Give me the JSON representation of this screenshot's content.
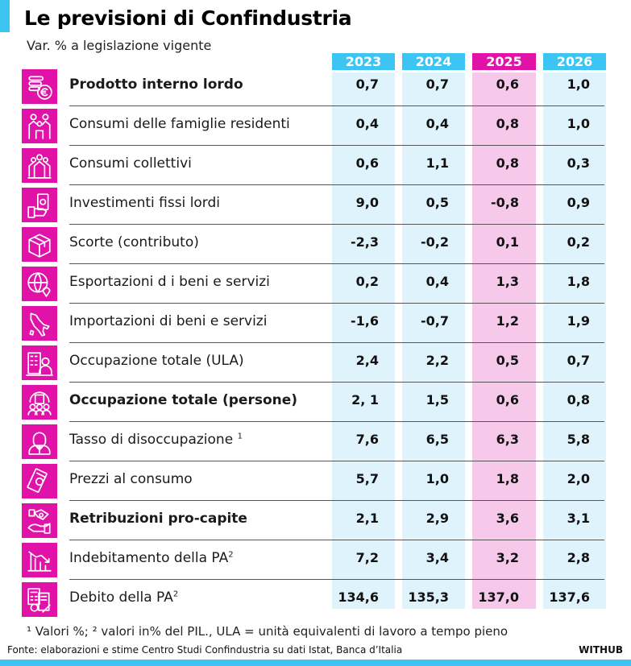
{
  "header": {
    "title": "Le previsioni di Confindustria",
    "subtitle": "Var. % a legislazione vigente"
  },
  "colors": {
    "accent_blue": "#3cc5f2",
    "accent_pink": "#e012a8",
    "column_blue": "#dff3fc",
    "column_pink": "#f6c9ea"
  },
  "columns": [
    "2023",
    "2024",
    "2025",
    "2026"
  ],
  "highlight_column": "2025",
  "rows": [
    {
      "icon": "coins-euro-icon",
      "label": "Prodotto interno lordo",
      "bold": true,
      "values": [
        "0,7",
        "0,7",
        "0,6",
        "1,0"
      ]
    },
    {
      "icon": "family-icon",
      "label": "Consumi delle famiglie residenti",
      "bold": false,
      "values": [
        "0,4",
        "0,4",
        "0,8",
        "1,0"
      ]
    },
    {
      "icon": "group-people-icon",
      "label": "Consumi collettivi",
      "bold": false,
      "values": [
        "0,6",
        "1,1",
        "0,8",
        "0,3"
      ]
    },
    {
      "icon": "hand-money-icon",
      "label": "Investimenti fissi lordi",
      "bold": false,
      "values": [
        "9,0",
        "0,5",
        "-0,8",
        "0,9"
      ]
    },
    {
      "icon": "box-icon",
      "label": "Scorte (contributo)",
      "bold": false,
      "values": [
        "-2,3",
        "-0,2",
        "0,1",
        "0,2"
      ]
    },
    {
      "icon": "globe-pin-icon",
      "label": "Esportazioni d i beni e servizi",
      "bold": false,
      "values": [
        "0,2",
        "0,4",
        "1,3",
        "1,8"
      ]
    },
    {
      "icon": "italy-map-icon",
      "label": "Importazioni di beni e servizi",
      "bold": false,
      "values": [
        "-1,6",
        "-0,7",
        "1,2",
        "1,9"
      ]
    },
    {
      "icon": "office-worker-icon",
      "label": "Occupazione totale (ULA)",
      "bold": false,
      "values": [
        "2,4",
        "2,2",
        "0,5",
        "0,7"
      ]
    },
    {
      "icon": "workforce-icon",
      "label": "Occupazione totale (persone)",
      "bold": true,
      "values": [
        "2, 1",
        "1,5",
        "0,6",
        "0,8"
      ]
    },
    {
      "icon": "businessman-icon",
      "label": "Tasso di disoccupazione",
      "sup": "1",
      "bold": false,
      "values": [
        "7,6",
        "6,5",
        "6,3",
        "5,8"
      ]
    },
    {
      "icon": "banknotes-icon",
      "label": "Prezzi al consumo",
      "bold": false,
      "values": [
        "5,7",
        "1,0",
        "1,8",
        "2,0"
      ]
    },
    {
      "icon": "hand-salary-icon",
      "label": "Retribuzioni pro-capite",
      "bold": true,
      "values": [
        "2,1",
        "2,9",
        "3,6",
        "3,1"
      ]
    },
    {
      "icon": "declining-chart-icon",
      "label": "Indebitamento della PA",
      "sup": "2",
      "bold": false,
      "values": [
        "7,2",
        "3,4",
        "3,2",
        "2,8"
      ]
    },
    {
      "icon": "calculator-document-icon",
      "label": "Debito della PA",
      "sup": "2",
      "bold": false,
      "values": [
        "134,6",
        "135,3",
        "137,0",
        "137,6"
      ]
    }
  ],
  "footer": {
    "footnote": "¹ Valori %; ² valori in% del PIL., ULA = unità equivalenti di lavoro a tempo pieno",
    "source": "Fonte: elaborazioni e stime Centro Studi Confindustria su dati Istat, Banca d’Italia",
    "brand": "WITHUB"
  },
  "chart_data": {
    "type": "table",
    "title": "Le previsioni di Confindustria",
    "subtitle": "Var. % a legislazione vigente",
    "columns": [
      "2023",
      "2024",
      "2025",
      "2026"
    ],
    "rows": [
      {
        "label": "Prodotto interno lordo",
        "values": [
          0.7,
          0.7,
          0.6,
          1.0
        ]
      },
      {
        "label": "Consumi delle famiglie residenti",
        "values": [
          0.4,
          0.4,
          0.8,
          1.0
        ]
      },
      {
        "label": "Consumi collettivi",
        "values": [
          0.6,
          1.1,
          0.8,
          0.3
        ]
      },
      {
        "label": "Investimenti fissi lordi",
        "values": [
          9.0,
          0.5,
          -0.8,
          0.9
        ]
      },
      {
        "label": "Scorte (contributo)",
        "values": [
          -2.3,
          -0.2,
          0.1,
          0.2
        ]
      },
      {
        "label": "Esportazioni di beni e servizi",
        "values": [
          0.2,
          0.4,
          1.3,
          1.8
        ]
      },
      {
        "label": "Importazioni di beni e servizi",
        "values": [
          -1.6,
          -0.7,
          1.2,
          1.9
        ]
      },
      {
        "label": "Occupazione totale (ULA)",
        "values": [
          2.4,
          2.2,
          0.5,
          0.7
        ]
      },
      {
        "label": "Occupazione totale (persone)",
        "values": [
          2.1,
          1.5,
          0.6,
          0.8
        ]
      },
      {
        "label": "Tasso di disoccupazione ¹",
        "values": [
          7.6,
          6.5,
          6.3,
          5.8
        ]
      },
      {
        "label": "Prezzi al consumo",
        "values": [
          5.7,
          1.0,
          1.8,
          2.0
        ]
      },
      {
        "label": "Retribuzioni pro-capite",
        "values": [
          2.1,
          2.9,
          3.6,
          3.1
        ]
      },
      {
        "label": "Indebitamento della PA ²",
        "values": [
          7.2,
          3.4,
          3.2,
          2.8
        ]
      },
      {
        "label": "Debito della PA ²",
        "values": [
          134.6,
          135.3,
          137.0,
          137.6
        ]
      }
    ]
  }
}
